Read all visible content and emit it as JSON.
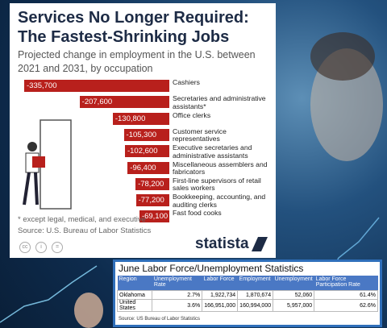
{
  "chart_data": {
    "type": "bar",
    "orientation": "horizontal",
    "title": "Services No Longer Required: The Fastest-Shrinking Jobs",
    "subtitle": "Projected change in employment in the U.S. between 2021 and 2031, by occupation",
    "categories": [
      "Cashiers",
      "Secretaries and administrative assistants*",
      "Office clerks",
      "Customer service representatives",
      "Executive secretaries and administrative assistants",
      "Miscellaneous assemblers and fabricators",
      "First-line supervisors of retail sales workers",
      "Bookkeeping, accounting, and auditing clerks",
      "Fast food cooks"
    ],
    "values": [
      -335700,
      -207600,
      -130800,
      -105300,
      -102600,
      -96400,
      -78200,
      -77200,
      -69100
    ],
    "value_labels": [
      "-335,700",
      "-207,600",
      "-130,800",
      "-105,300",
      "-102,600",
      "-96,400",
      "-78,200",
      "-77,200",
      "-69,100"
    ],
    "color": "#b8201c",
    "footnote": "* except legal, medical, and executive",
    "source": "Source: U.S. Bureau of Labor Statistics",
    "brand": "statista"
  },
  "table": {
    "title": "June Labor Force/Unemployment Statistics",
    "header": [
      "Region",
      "Unemployment Rate",
      "Labor Force",
      "Employment",
      "Unemployment",
      "Labor Force Participation Rate"
    ],
    "rows": [
      [
        "Oklahoma",
        "2.7%",
        "1,922,734",
        "1,870,674",
        "52,060",
        "61.4%"
      ],
      [
        "United States",
        "3.6%",
        "166,951,000",
        "160,994,000",
        "5,957,000",
        "62.6%"
      ]
    ],
    "source": "Source: US Bureau of Labor Statistics"
  }
}
